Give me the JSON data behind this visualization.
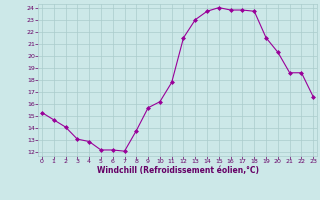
{
  "x": [
    0,
    1,
    2,
    3,
    4,
    5,
    6,
    7,
    8,
    9,
    10,
    11,
    12,
    13,
    14,
    15,
    16,
    17,
    18,
    19,
    20,
    21,
    22,
    23
  ],
  "y": [
    15.3,
    14.7,
    14.1,
    13.1,
    12.9,
    12.2,
    12.2,
    12.1,
    13.8,
    15.7,
    16.2,
    17.8,
    21.5,
    23.0,
    23.7,
    24.0,
    23.8,
    23.8,
    23.7,
    21.5,
    20.3,
    18.6,
    18.6,
    16.6
  ],
  "line_color": "#990099",
  "marker": "D",
  "marker_size": 2,
  "bg_color": "#cce8e8",
  "grid_color": "#aacccc",
  "xlabel": "Windchill (Refroidissement éolien,°C)",
  "xlabel_color": "#660066",
  "tick_color": "#660066",
  "ylim_min": 12,
  "ylim_max": 24,
  "xlim_min": 0,
  "xlim_max": 23,
  "yticks": [
    12,
    13,
    14,
    15,
    16,
    17,
    18,
    19,
    20,
    21,
    22,
    23,
    24
  ],
  "xticks": [
    0,
    1,
    2,
    3,
    4,
    5,
    6,
    7,
    8,
    9,
    10,
    11,
    12,
    13,
    14,
    15,
    16,
    17,
    18,
    19,
    20,
    21,
    22,
    23
  ]
}
